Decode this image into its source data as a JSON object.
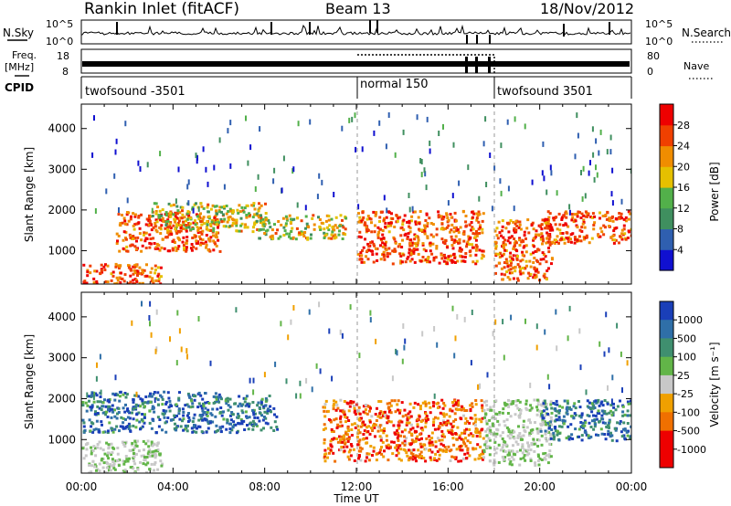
{
  "header": {
    "station": "Rankin Inlet (fitACF)",
    "beam": "Beam 13",
    "date": "18/Nov/2012"
  },
  "noise_panel": {
    "left_label": "N.Sky",
    "right_label": "N.Search",
    "ticks_top": "10^5",
    "ticks_bottom": "10^0"
  },
  "freq_panel": {
    "label_top": "Freq.",
    "label_bottom": "[MHz]",
    "ticks_left": [
      "18",
      "8"
    ],
    "right_label": "Nave",
    "ticks_right": [
      "80",
      "0"
    ]
  },
  "cpid_panel": {
    "label": "CPID",
    "segments": [
      {
        "name": "twofsound -3501",
        "start": 0,
        "end": 12
      },
      {
        "name": "normal 150",
        "start": 12,
        "end": 18
      },
      {
        "name": "twofsound 3501",
        "start": 18,
        "end": 24
      }
    ]
  },
  "power_panel": {
    "ylabel": "Slant Range [km]",
    "yticks": [
      "1000",
      "2000",
      "3000",
      "4000"
    ],
    "colorbar_label": "Power [dB]",
    "colorbar_ticks": [
      "4",
      "8",
      "12",
      "16",
      "20",
      "24",
      "28"
    ],
    "colors": [
      "#1010d0",
      "#2f5fb0",
      "#3f8f5f",
      "#52b04a",
      "#e5c000",
      "#f08d00",
      "#f04000",
      "#ee0000"
    ]
  },
  "velocity_panel": {
    "ylabel": "Slant Range [km]",
    "yticks": [
      "1000",
      "2000",
      "3000",
      "4000"
    ],
    "colorbar_label": "Velocity  [m s⁻¹]",
    "colorbar_ticks": [
      "1000",
      "500",
      "100",
      "25",
      "-25",
      "-100",
      "-500",
      "-1000"
    ],
    "colors": [
      "#1a3fb8",
      "#2f6fa8",
      "#3f8f6f",
      "#62b548",
      "#c8c8c8",
      "#f0a000",
      "#f07000",
      "#ee0000"
    ]
  },
  "xaxis": {
    "label": "Time UT",
    "ticks": [
      "00:00",
      "04:00",
      "08:00",
      "12:00",
      "16:00",
      "20:00",
      "00:00"
    ]
  },
  "chart_data": {
    "type": "heatmap",
    "title": "Rankin Inlet (fitACF) Beam 13 18/Nov/2012",
    "xlabel": "Time UT",
    "ylabel": "Slant Range [km]",
    "xlim": [
      0,
      24
    ],
    "ylim": [
      180,
      4600
    ],
    "power_scale_db": [
      0,
      30
    ],
    "velocity_scale_ms": [
      -1000,
      1000
    ],
    "mode_changes_ut": [
      12,
      18
    ],
    "power_echo_regions": [
      {
        "t0": 0.0,
        "t1": 3.5,
        "r0": 200,
        "r1": 700,
        "level": "high"
      },
      {
        "t0": 1.5,
        "t1": 6.0,
        "r0": 1000,
        "r1": 2000,
        "level": "high"
      },
      {
        "t0": 3.0,
        "t1": 8.0,
        "r0": 1500,
        "r1": 2200,
        "level": "medium"
      },
      {
        "t0": 7.5,
        "t1": 11.5,
        "r0": 1300,
        "r1": 1900,
        "level": "medium"
      },
      {
        "t0": 12.0,
        "t1": 17.5,
        "r0": 700,
        "r1": 2000,
        "level": "high"
      },
      {
        "t0": 18.0,
        "t1": 20.5,
        "r0": 300,
        "r1": 1800,
        "level": "high"
      },
      {
        "t0": 20.0,
        "t1": 24.0,
        "r0": 1200,
        "r1": 2000,
        "level": "high"
      }
    ],
    "velocity_echo_regions": [
      {
        "t0": 0.0,
        "t1": 3.5,
        "r0": 200,
        "r1": 1000,
        "velocity": "near zero"
      },
      {
        "t0": 0.0,
        "t1": 6.0,
        "r0": 1200,
        "r1": 2200,
        "velocity": "positive"
      },
      {
        "t0": 6.0,
        "t1": 8.5,
        "r0": 1200,
        "r1": 2100,
        "velocity": "positive"
      },
      {
        "t0": 10.5,
        "t1": 17.5,
        "r0": 500,
        "r1": 2000,
        "velocity": "negative"
      },
      {
        "t0": 17.5,
        "t1": 20.5,
        "r0": 400,
        "r1": 2000,
        "velocity": "near zero"
      },
      {
        "t0": 20.0,
        "t1": 24.0,
        "r0": 1000,
        "r1": 2000,
        "velocity": "positive"
      }
    ]
  }
}
